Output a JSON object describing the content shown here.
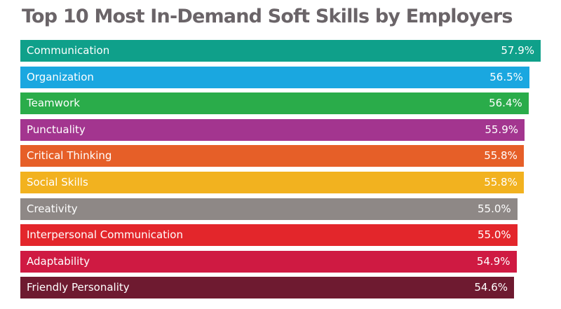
{
  "chart_data": {
    "type": "bar",
    "orientation": "horizontal",
    "title": "Top 10 Most In-Demand Soft Skills by Employers",
    "xlabel": "",
    "ylabel": "",
    "grid": false,
    "categories": [
      "Communication",
      "Organization",
      "Teamwork",
      "Punctuality",
      "Critical Thinking",
      "Social Skills",
      "Creativity",
      "Interpersonal Communication",
      "Adaptability",
      "Friendly Personality"
    ],
    "values": [
      57.9,
      56.5,
      56.4,
      55.9,
      55.8,
      55.8,
      55.0,
      55.0,
      54.9,
      54.6
    ],
    "value_labels": [
      "57.9%",
      "56.5%",
      "56.4%",
      "55.9%",
      "55.8%",
      "55.8%",
      "55.0%",
      "55.0%",
      "54.9%",
      "54.6%"
    ],
    "colors": [
      "#0fa08a",
      "#1aa7e0",
      "#2aac4a",
      "#a3358f",
      "#e65f28",
      "#f2b21f",
      "#8e8886",
      "#e3262b",
      "#cf1a42",
      "#6e1a30"
    ]
  }
}
